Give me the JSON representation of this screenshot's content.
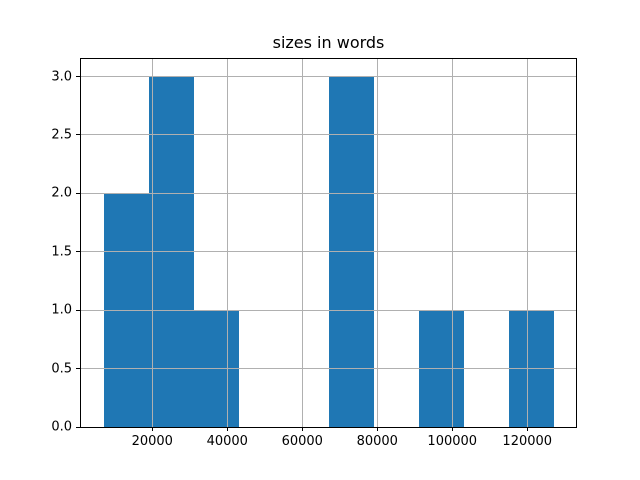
{
  "title": "sizes in words",
  "chart_data": {
    "type": "histogram",
    "title": "sizes in words",
    "xlabel": "",
    "ylabel": "",
    "bin_edges": [
      7000,
      19000,
      31000,
      43000,
      55000,
      67000,
      79000,
      91000,
      103000,
      115000,
      127000
    ],
    "counts": [
      2,
      3,
      1,
      0,
      0,
      3,
      0,
      1,
      0,
      1
    ],
    "xlim": [
      1000,
      133000
    ],
    "ylim": [
      0,
      3.15
    ],
    "x_ticks": [
      20000,
      40000,
      60000,
      80000,
      100000,
      120000
    ],
    "x_tick_labels": [
      "20000",
      "40000",
      "60000",
      "80000",
      "100000",
      "120000"
    ],
    "y_ticks": [
      0,
      0.5,
      1,
      1.5,
      2,
      2.5,
      3
    ],
    "y_tick_labels": [
      "0.0",
      "0.5",
      "1.0",
      "1.5",
      "2.0",
      "2.5",
      "3.0"
    ],
    "grid": true,
    "grid_over_bars": true,
    "legend": null,
    "colors": {
      "bar": "#1f77b4",
      "grid": "#b0b0b0",
      "spine": "#000000",
      "text": "#000000",
      "background": "#ffffff"
    }
  }
}
